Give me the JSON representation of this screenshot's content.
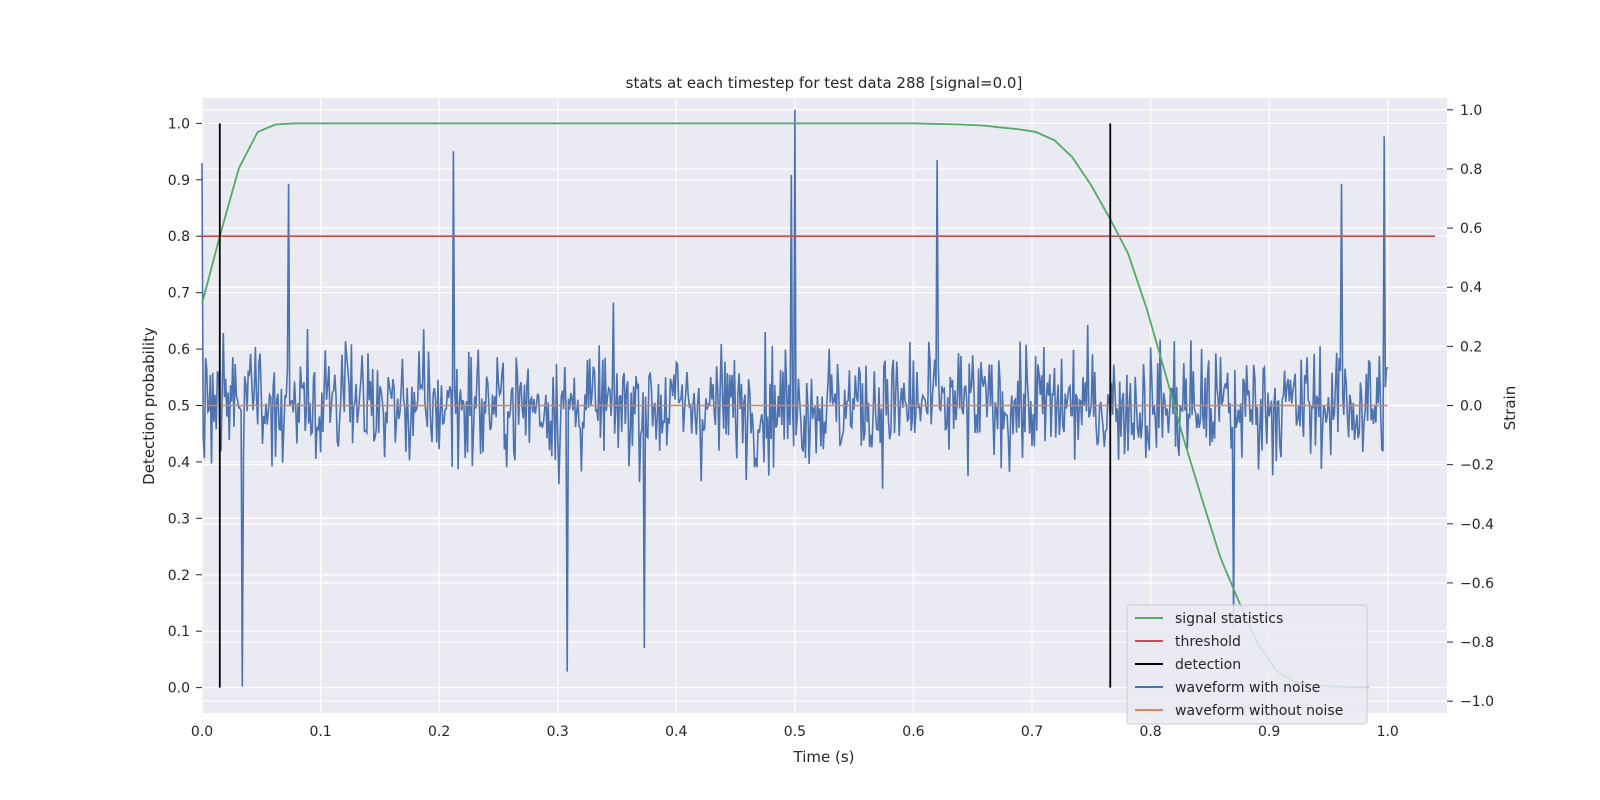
{
  "chart_data": {
    "type": "line",
    "title": "stats at each timestep for test data 288 [signal=0.0]",
    "xlabel": "Time (s)",
    "ylabel": "Detection probability",
    "y2label": "Strain",
    "xlim": [
      0.0,
      1.05
    ],
    "ylim": [
      -0.045,
      1.045
    ],
    "y2lim": [
      -1.04,
      1.04
    ],
    "xticks": [
      "0.0",
      "0.1",
      "0.2",
      "0.3",
      "0.4",
      "0.5",
      "0.6",
      "0.7",
      "0.8",
      "0.9",
      "1.0"
    ],
    "yticks": [
      "0.0",
      "0.1",
      "0.2",
      "0.3",
      "0.4",
      "0.5",
      "0.6",
      "0.7",
      "0.8",
      "0.9",
      "1.0"
    ],
    "y2ticks": [
      "−1.0",
      "−0.8",
      "−0.6",
      "−0.4",
      "−0.2",
      "0.0",
      "0.2",
      "0.4",
      "0.6",
      "0.8",
      "1.0"
    ],
    "grid": true,
    "legend_position": "lower-right",
    "legend": [
      "signal statistics",
      "threshold",
      "detection",
      "waveform with noise",
      "waveform without noise"
    ],
    "colors": {
      "signal": "#55a868",
      "threshold": "#c44e52",
      "detection": "#000000",
      "noisy": "#4c72b0",
      "clean": "#dd8452",
      "background": "#eaeaf2",
      "grid": "#ffffff"
    },
    "series": [
      {
        "name": "signal statistics",
        "axis": "left",
        "x": [
          0.0,
          0.015,
          0.031,
          0.047,
          0.062,
          0.078,
          0.1,
          0.2,
          0.3,
          0.4,
          0.5,
          0.6,
          0.64,
          0.66,
          0.672,
          0.687,
          0.703,
          0.719,
          0.734,
          0.75,
          0.766,
          0.781,
          0.797,
          0.812,
          0.828,
          0.844,
          0.859,
          0.875,
          0.89,
          0.906,
          0.922,
          0.937,
          0.953,
          0.968,
          0.984
        ],
        "y": [
          0.68,
          0.8,
          0.92,
          0.985,
          0.998,
          1.0,
          1.0,
          1.0,
          1.0,
          1.0,
          1.0,
          1.0,
          0.998,
          0.996,
          0.993,
          0.99,
          0.985,
          0.97,
          0.94,
          0.89,
          0.83,
          0.77,
          0.67,
          0.56,
          0.44,
          0.33,
          0.23,
          0.15,
          0.08,
          0.03,
          0.01,
          0.005,
          0.002,
          0.001,
          0.0
        ]
      },
      {
        "name": "threshold",
        "axis": "left",
        "x": [
          0.0,
          1.04
        ],
        "y": [
          0.8,
          0.8
        ]
      },
      {
        "name": "detection",
        "axis": "left",
        "type": "vlines",
        "x": [
          0.015,
          0.766
        ],
        "ymin": 0.0,
        "ymax": 1.0
      },
      {
        "name": "waveform with noise",
        "axis": "right",
        "x_start": 0.0,
        "x_end": 1.0,
        "n_points": 1000,
        "y_range": [
          -0.95,
          1.0
        ],
        "spikes": [
          [
            0.0,
            0.82
          ],
          [
            0.034,
            -0.95
          ],
          [
            0.073,
            0.75
          ],
          [
            0.212,
            0.86
          ],
          [
            0.308,
            -0.9
          ],
          [
            0.373,
            -0.82
          ],
          [
            0.5,
            1.0
          ],
          [
            0.497,
            0.78
          ],
          [
            0.62,
            0.83
          ],
          [
            0.997,
            0.91
          ],
          [
            0.961,
            0.75
          ],
          [
            0.87,
            -0.75
          ]
        ]
      },
      {
        "name": "waveform without noise",
        "axis": "right",
        "x": [
          0.0,
          1.0
        ],
        "y": [
          0.0,
          0.0
        ]
      }
    ]
  }
}
